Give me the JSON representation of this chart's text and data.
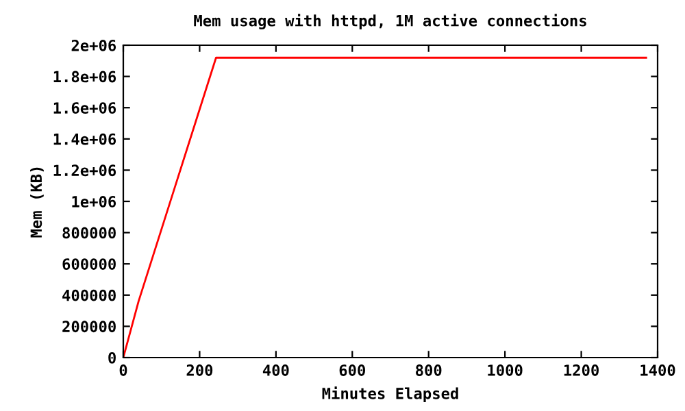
{
  "chart_data": {
    "type": "line",
    "title": "Mem usage with httpd, 1M active connections",
    "xlabel": "Minutes Elapsed",
    "ylabel": "Mem (KB)",
    "x": [
      0,
      40,
      243,
      1370
    ],
    "series": [
      {
        "color": "#ff0000",
        "values": [
          0,
          360000,
          1920000,
          1920000
        ]
      }
    ],
    "xlim": [
      0,
      1400
    ],
    "xticks": [
      0,
      200,
      400,
      600,
      800,
      1000,
      1200,
      1400
    ],
    "ylim": [
      0,
      2000000
    ],
    "yticks": [
      {
        "value": 0,
        "label": "0"
      },
      {
        "value": 200000,
        "label": "200000"
      },
      {
        "value": 400000,
        "label": "400000"
      },
      {
        "value": 600000,
        "label": "600000"
      },
      {
        "value": 800000,
        "label": "800000"
      },
      {
        "value": 1000000,
        "label": "1e+06"
      },
      {
        "value": 1200000,
        "label": "1.2e+06"
      },
      {
        "value": 1400000,
        "label": "1.4e+06"
      },
      {
        "value": 1600000,
        "label": "1.6e+06"
      },
      {
        "value": 1800000,
        "label": "1.8e+06"
      },
      {
        "value": 2000000,
        "label": "2e+06"
      }
    ],
    "grid": false,
    "legend": false
  }
}
